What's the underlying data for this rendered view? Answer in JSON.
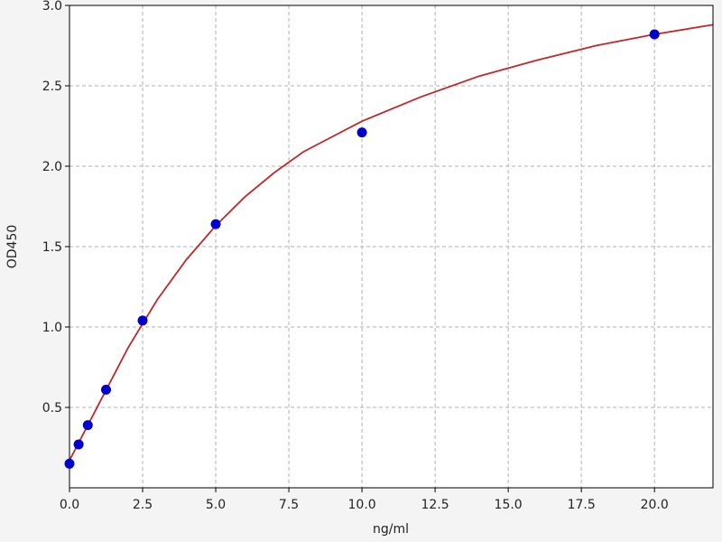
{
  "chart_data": {
    "type": "scatter",
    "x_label": "ng/ml",
    "y_label": "OD450",
    "xlim": [
      0,
      22
    ],
    "ylim": [
      0,
      3.0
    ],
    "xticks": [
      {
        "value": 0,
        "label": "0.0"
      },
      2.5,
      {
        "value": 5,
        "label": "5.0"
      },
      7.5,
      {
        "value": 10,
        "label": "10.0"
      },
      12.5,
      {
        "value": 15,
        "label": "15.0"
      },
      17.5,
      {
        "value": 20,
        "label": "20.0"
      }
    ],
    "yticks": [
      0.5,
      {
        "value": 1,
        "label": "1.0"
      },
      1.5,
      {
        "value": 2,
        "label": "2.0"
      },
      2.5,
      {
        "value": 3,
        "label": "3.0"
      }
    ],
    "grid": true,
    "series": [
      {
        "type": "scatter",
        "color": "#0000cc",
        "x": [
          0,
          0.3125,
          0.625,
          1.25,
          2.5,
          5,
          10,
          20
        ],
        "values": [
          0.15,
          0.27,
          0.39,
          0.61,
          1.04,
          1.64,
          2.21,
          2.82
        ]
      },
      {
        "type": "line",
        "color": "#c0282a",
        "x": [
          0,
          1,
          2,
          3,
          4,
          5,
          6,
          7,
          8,
          10,
          12,
          14,
          16,
          18,
          20,
          22
        ],
        "values": [
          0.17,
          0.52,
          0.87,
          1.17,
          1.42,
          1.63,
          1.81,
          1.96,
          2.09,
          2.28,
          2.43,
          2.56,
          2.66,
          2.75,
          2.82,
          2.88
        ]
      }
    ]
  }
}
